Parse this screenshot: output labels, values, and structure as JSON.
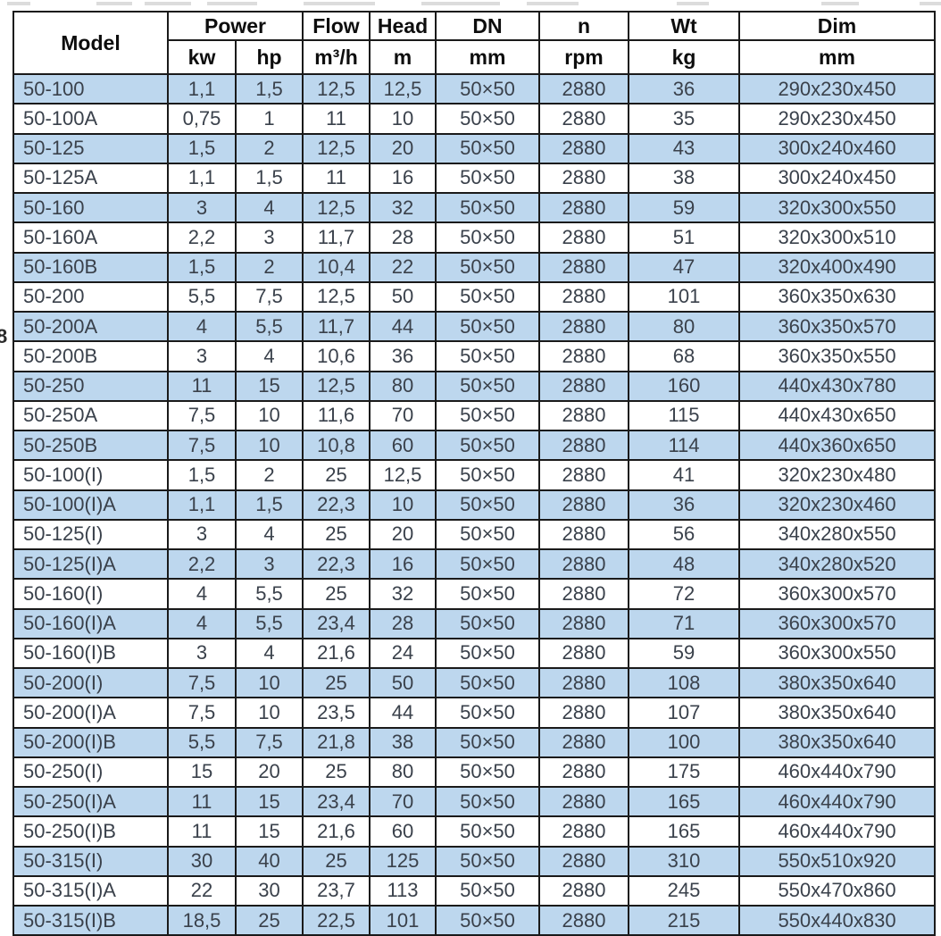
{
  "page": {
    "margin_artifact": "8"
  },
  "table": {
    "header": {
      "model": "Model",
      "power": "Power",
      "power_kw_unit": "kw",
      "power_hp_unit": "hp",
      "flow": "Flow",
      "flow_unit": "m³/h",
      "head": "Head",
      "head_unit": "m",
      "dn": "DN",
      "dn_unit": "mm",
      "n": "n",
      "n_unit": "rpm",
      "wt": "Wt",
      "wt_unit": "kg",
      "dim": "Dim",
      "dim_unit": "mm"
    },
    "column_keys": [
      "model",
      "power-kw",
      "power-hp",
      "flow-m3h",
      "head-m",
      "dn-mm",
      "n-rpm",
      "wt-kg",
      "dim-mm"
    ],
    "rows": [
      [
        "50-100",
        "1,1",
        "1,5",
        "12,5",
        "12,5",
        "50×50",
        "2880",
        "36",
        "290x230x450"
      ],
      [
        "50-100A",
        "0,75",
        "1",
        "11",
        "10",
        "50×50",
        "2880",
        "35",
        "290x230x450"
      ],
      [
        "50-125",
        "1,5",
        "2",
        "12,5",
        "20",
        "50×50",
        "2880",
        "43",
        "300x240x460"
      ],
      [
        "50-125A",
        "1,1",
        "1,5",
        "11",
        "16",
        "50×50",
        "2880",
        "38",
        "300x240x450"
      ],
      [
        "50-160",
        "3",
        "4",
        "12,5",
        "32",
        "50×50",
        "2880",
        "59",
        "320x300x550"
      ],
      [
        "50-160A",
        "2,2",
        "3",
        "11,7",
        "28",
        "50×50",
        "2880",
        "51",
        "320x300x510"
      ],
      [
        "50-160B",
        "1,5",
        "2",
        "10,4",
        "22",
        "50×50",
        "2880",
        "47",
        "320x400x490"
      ],
      [
        "50-200",
        "5,5",
        "7,5",
        "12,5",
        "50",
        "50×50",
        "2880",
        "101",
        "360x350x630"
      ],
      [
        "50-200A",
        "4",
        "5,5",
        "11,7",
        "44",
        "50×50",
        "2880",
        "80",
        "360x350x570"
      ],
      [
        "50-200B",
        "3",
        "4",
        "10,6",
        "36",
        "50×50",
        "2880",
        "68",
        "360x350x550"
      ],
      [
        "50-250",
        "11",
        "15",
        "12,5",
        "80",
        "50×50",
        "2880",
        "160",
        "440x430x780"
      ],
      [
        "50-250A",
        "7,5",
        "10",
        "11,6",
        "70",
        "50×50",
        "2880",
        "115",
        "440x430x650"
      ],
      [
        "50-250B",
        "7,5",
        "10",
        "10,8",
        "60",
        "50×50",
        "2880",
        "114",
        "440x360x650"
      ],
      [
        "50-100(I)",
        "1,5",
        "2",
        "25",
        "12,5",
        "50×50",
        "2880",
        "41",
        "320x230x480"
      ],
      [
        "50-100(I)A",
        "1,1",
        "1,5",
        "22,3",
        "10",
        "50×50",
        "2880",
        "36",
        "320x230x460"
      ],
      [
        "50-125(I)",
        "3",
        "4",
        "25",
        "20",
        "50×50",
        "2880",
        "56",
        "340x280x550"
      ],
      [
        "50-125(I)A",
        "2,2",
        "3",
        "22,3",
        "16",
        "50×50",
        "2880",
        "48",
        "340x280x520"
      ],
      [
        "50-160(I)",
        "4",
        "5,5",
        "25",
        "32",
        "50×50",
        "2880",
        "72",
        "360x300x570"
      ],
      [
        "50-160(I)A",
        "4",
        "5,5",
        "23,4",
        "28",
        "50×50",
        "2880",
        "71",
        "360x300x570"
      ],
      [
        "50-160(I)B",
        "3",
        "4",
        "21,6",
        "24",
        "50×50",
        "2880",
        "59",
        "360x300x550"
      ],
      [
        "50-200(I)",
        "7,5",
        "10",
        "25",
        "50",
        "50×50",
        "2880",
        "108",
        "380x350x640"
      ],
      [
        "50-200(I)A",
        "7,5",
        "10",
        "23,5",
        "44",
        "50×50",
        "2880",
        "107",
        "380x350x640"
      ],
      [
        "50-200(I)B",
        "5,5",
        "7,5",
        "21,8",
        "38",
        "50×50",
        "2880",
        "100",
        "380x350x640"
      ],
      [
        "50-250(I)",
        "15",
        "20",
        "25",
        "80",
        "50×50",
        "2880",
        "175",
        "460x440x790"
      ],
      [
        "50-250(I)A",
        "11",
        "15",
        "23,4",
        "70",
        "50×50",
        "2880",
        "165",
        "460x440x790"
      ],
      [
        "50-250(I)B",
        "11",
        "15",
        "21,6",
        "60",
        "50×50",
        "2880",
        "165",
        "460x440x790"
      ],
      [
        "50-315(I)",
        "30",
        "40",
        "25",
        "125",
        "50×50",
        "2880",
        "310",
        "550x510x920"
      ],
      [
        "50-315(I)A",
        "22",
        "30",
        "23,7",
        "113",
        "50×50",
        "2880",
        "245",
        "550x470x860"
      ],
      [
        "50-315(I)B",
        "18,5",
        "25",
        "22,5",
        "101",
        "50×50",
        "2880",
        "215",
        "550x440x830"
      ]
    ],
    "colors": {
      "row_stripe_blue": "#bdd7ee",
      "row_white": "#ffffff",
      "grid_border": "#1a1a1a",
      "header_text": "#0d0d0d",
      "data_text": "#3a414b"
    }
  }
}
